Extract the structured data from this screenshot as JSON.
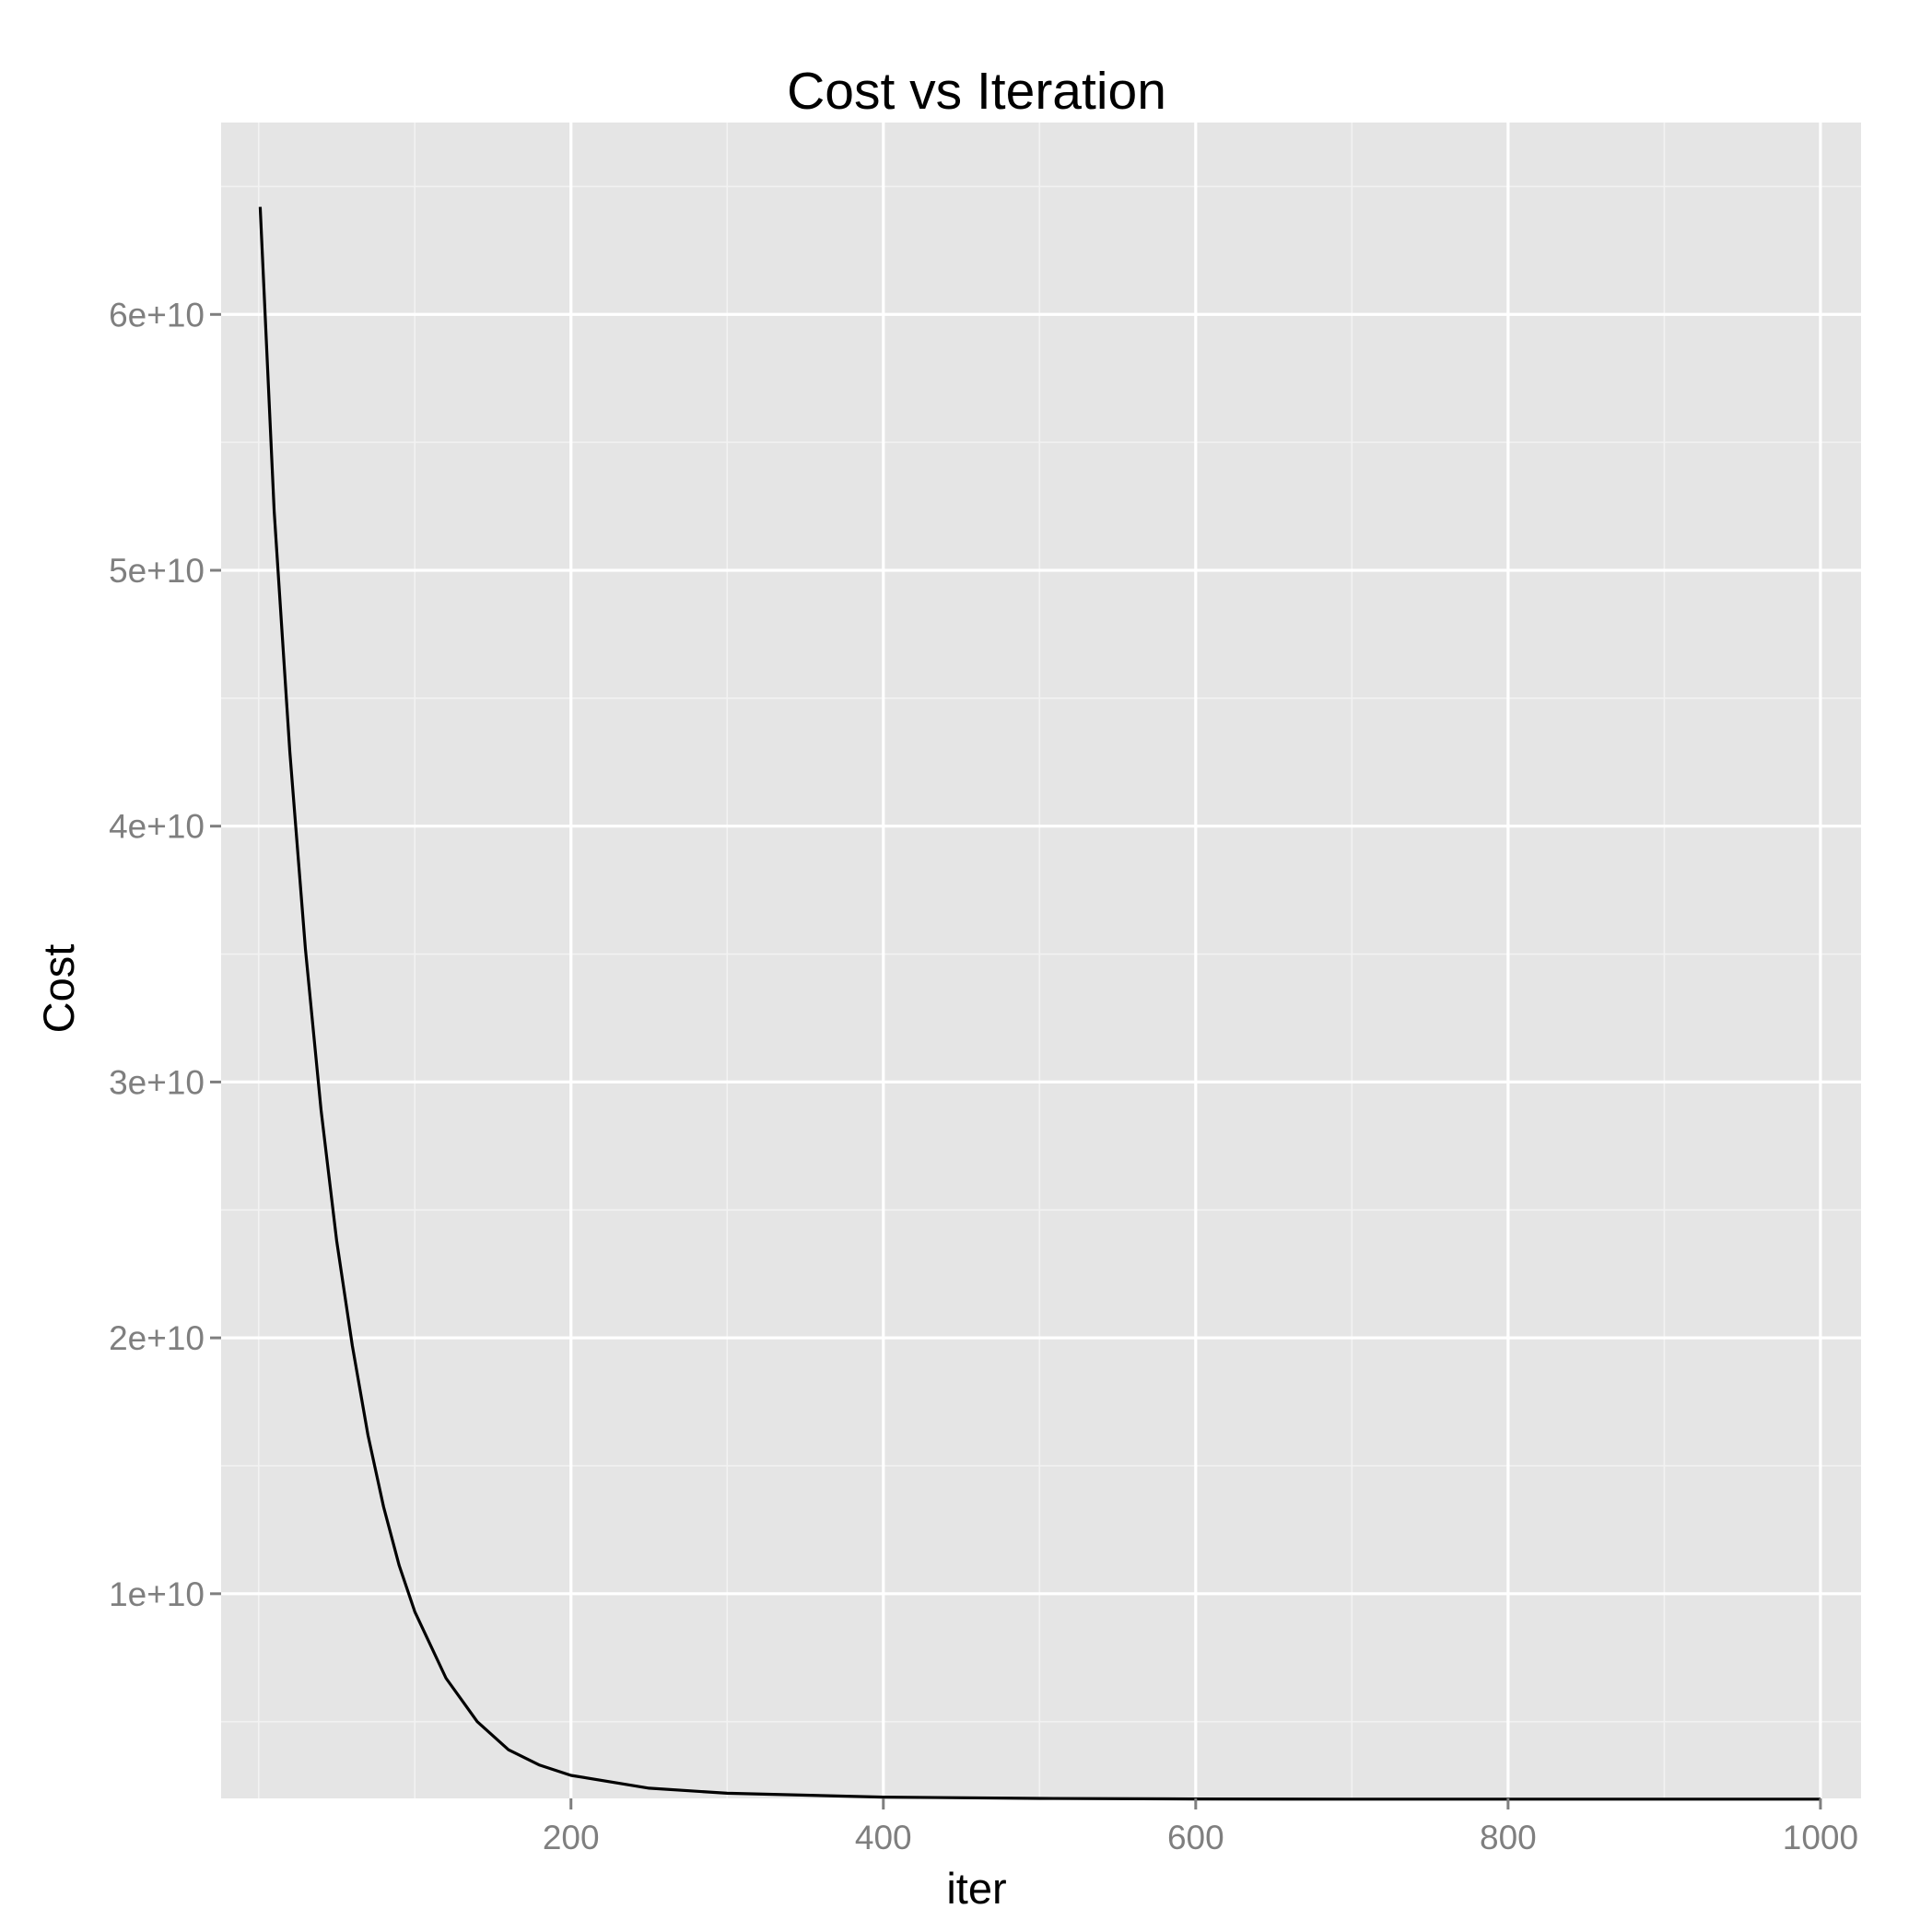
{
  "chart_data": {
    "type": "line",
    "title": "Cost vs Iteration",
    "xlabel": "iter",
    "ylabel": "Cost",
    "xlim": [
      -24,
      1026
    ],
    "ylim": [
      2000000000,
      67500000000
    ],
    "x_ticks": [
      200,
      400,
      600,
      800,
      1000
    ],
    "x_tick_labels": [
      "200",
      "400",
      "600",
      "800",
      "1000"
    ],
    "x_minor_ticks": [
      0,
      100,
      300,
      500,
      700,
      900
    ],
    "y_ticks": [
      10000000000,
      20000000000,
      30000000000,
      40000000000,
      50000000000,
      60000000000
    ],
    "y_tick_labels": [
      "1e+10",
      "2e+10",
      "3e+10",
      "4e+10",
      "5e+10",
      "6e+10"
    ],
    "y_minor_ticks": [
      5000000000,
      15000000000,
      25000000000,
      35000000000,
      45000000000,
      55000000000,
      65000000000
    ],
    "grid": true,
    "legend": "none",
    "colors": {
      "panel_background": "#e5e5e5",
      "grid_major": "#ffffff",
      "grid_minor": "#f2f2f2",
      "line": "#000000",
      "tick_text": "#7f7f7f",
      "tick_mark": "#7f7f7f"
    },
    "series": [
      {
        "x": [
          1,
          10,
          20,
          30,
          40,
          50,
          60,
          70,
          80,
          90,
          100,
          120,
          140,
          160,
          180,
          200,
          250,
          300,
          400,
          500,
          600,
          700,
          800,
          900,
          1000
        ],
        "values": [
          64200000000,
          52300000000,
          42900000000,
          35200000000,
          28900000000,
          23800000000,
          19700000000,
          16200000000,
          13400000000,
          11100000000,
          9300000000,
          6700000000,
          5000000000,
          3900000000,
          3300000000,
          2900000000,
          2400000000,
          2200000000,
          2050000000,
          2000000000,
          1980000000,
          1970000000,
          1970000000,
          1970000000,
          1970000000
        ]
      }
    ]
  }
}
